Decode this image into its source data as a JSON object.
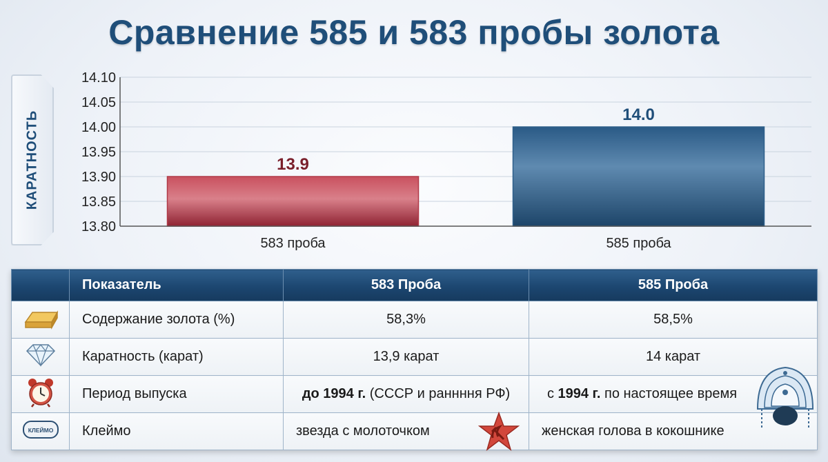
{
  "title": "Сравнение 585 и 583 пробы золота",
  "chart_data": {
    "type": "bar",
    "title": "Сравнение 585 и 583 пробы золота",
    "ylabel": "КАРАТНОСТЬ",
    "xlabel": "",
    "categories": [
      "583 проба",
      "585 проба"
    ],
    "values": [
      13.9,
      14.0
    ],
    "value_labels": [
      "13.9",
      "14.0"
    ],
    "bar_colors": [
      "#b03a48",
      "#2e5f8a"
    ],
    "value_label_colors": [
      "#7a1f2b",
      "#1f4e79"
    ],
    "ylim": [
      13.8,
      14.1
    ],
    "yticks": [
      "13.80",
      "13.85",
      "13.90",
      "13.95",
      "14.00",
      "14.05",
      "14.10"
    ],
    "grid": true
  },
  "table": {
    "headers": [
      "",
      "Показатель",
      "583 Проба",
      "585 Проба"
    ],
    "rows": [
      {
        "icon": "gold-bar-icon",
        "label": "Содержание золота (%)",
        "v583": "58,3%",
        "v585": "58,5%"
      },
      {
        "icon": "diamond-icon",
        "label": "Каратность (карат)",
        "v583": "13,9 карат",
        "v585": "14 карат"
      },
      {
        "icon": "alarm-clock-icon",
        "label": "Период выпуска",
        "v583_bold": "до 1994 г.",
        "v583_rest": " (СССР и раннння РФ)",
        "v585_pre": "с ",
        "v585_bold": "1994 г.",
        "v585_rest": " по настоящее время"
      },
      {
        "icon": "hallmark-icon",
        "icon_text": "КЛЕЙМО",
        "label": "Клеймо",
        "v583": "звезда с молоточком",
        "v585": "женская голова в кокошнике"
      }
    ]
  }
}
